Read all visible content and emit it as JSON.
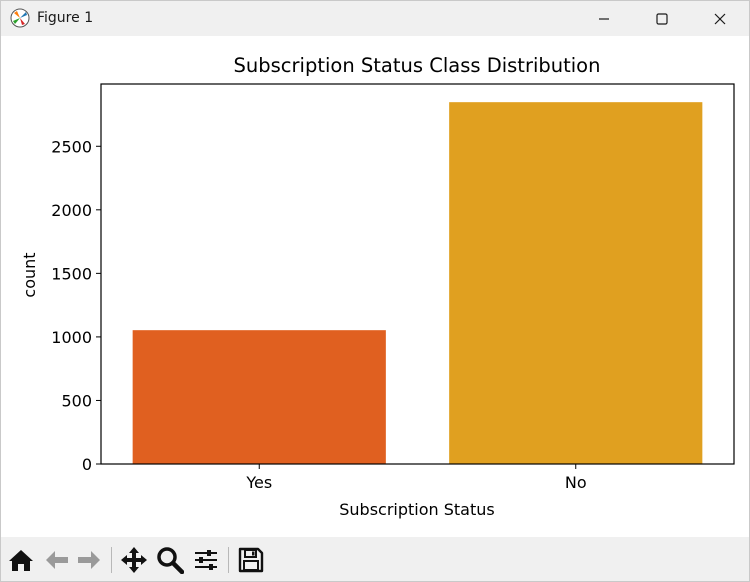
{
  "window": {
    "title": "Figure 1",
    "app_icon": "matplotlib-icon",
    "controls": [
      "minimize-icon",
      "maximize-icon",
      "close-icon"
    ]
  },
  "toolbar": {
    "buttons": [
      "home-icon",
      "back-arrow-icon",
      "forward-arrow-icon",
      "pan-move-icon",
      "zoom-magnifier-icon",
      "configure-subplots-icon",
      "save-floppy-icon"
    ]
  },
  "chart_data": {
    "type": "bar",
    "title": "Subscription Status Class Distribution",
    "xlabel": "Subscription Status",
    "ylabel": "count",
    "categories": [
      "Yes",
      "No"
    ],
    "values": [
      1053,
      2847
    ],
    "colors": [
      "#e06020",
      "#e0a020"
    ],
    "ylim": [
      0,
      2990
    ],
    "yticks": [
      0,
      500,
      1000,
      1500,
      2000,
      2500
    ],
    "grid": false,
    "legend": "none"
  }
}
